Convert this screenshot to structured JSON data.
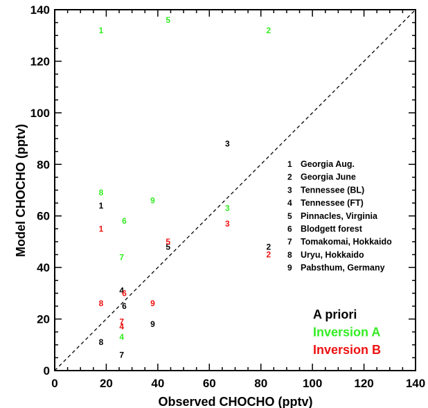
{
  "chart_data": {
    "type": "scatter",
    "xlabel": "Observed CHOCHO (pptv)",
    "ylabel": "Model CHOCHO (pptv)",
    "xlim": [
      0,
      140
    ],
    "ylim": [
      0,
      140
    ],
    "x_ticks": [
      0,
      20,
      40,
      60,
      80,
      100,
      120,
      140
    ],
    "y_ticks": [
      0,
      20,
      40,
      60,
      80,
      100,
      120,
      140
    ],
    "grid": false,
    "reference_line": "1:1 dashed",
    "site_legend": [
      {
        "num": "1",
        "label": "Georgia Aug."
      },
      {
        "num": "2",
        "label": "Georgia June"
      },
      {
        "num": "3",
        "label": "Tennessee (BL)"
      },
      {
        "num": "4",
        "label": "Tennessee (FT)"
      },
      {
        "num": "5",
        "label": "Pinnacles, Virginia"
      },
      {
        "num": "6",
        "label": "Blodgett forest"
      },
      {
        "num": "7",
        "label": "Tomakomai, Hokkaido"
      },
      {
        "num": "8",
        "label": "Uryu, Hokkaido"
      },
      {
        "num": "9",
        "label": "Pabsthum, Germany"
      }
    ],
    "series": [
      {
        "name": "A priori",
        "color": "#000000",
        "points": [
          {
            "label": "1",
            "x": 18,
            "y": 64
          },
          {
            "label": "2",
            "x": 83,
            "y": 48
          },
          {
            "label": "3",
            "x": 67,
            "y": 88
          },
          {
            "label": "4",
            "x": 26,
            "y": 31
          },
          {
            "label": "5",
            "x": 44,
            "y": 48
          },
          {
            "label": "6",
            "x": 27,
            "y": 25
          },
          {
            "label": "7",
            "x": 26,
            "y": 6
          },
          {
            "label": "8",
            "x": 18,
            "y": 11
          },
          {
            "label": "9",
            "x": 38,
            "y": 18
          }
        ]
      },
      {
        "name": "Inversion A",
        "color": "#33ee22",
        "points": [
          {
            "label": "1",
            "x": 18,
            "y": 132
          },
          {
            "label": "2",
            "x": 83,
            "y": 132
          },
          {
            "label": "3",
            "x": 67,
            "y": 63
          },
          {
            "label": "4",
            "x": 26,
            "y": 13
          },
          {
            "label": "5",
            "x": 44,
            "y": 136
          },
          {
            "label": "6",
            "x": 27,
            "y": 58
          },
          {
            "label": "7",
            "x": 26,
            "y": 44
          },
          {
            "label": "8",
            "x": 18,
            "y": 69
          },
          {
            "label": "9",
            "x": 38,
            "y": 66
          }
        ]
      },
      {
        "name": "Inversion B",
        "color": "#ee1111",
        "points": [
          {
            "label": "1",
            "x": 18,
            "y": 55
          },
          {
            "label": "2",
            "x": 83,
            "y": 45
          },
          {
            "label": "3",
            "x": 67,
            "y": 57
          },
          {
            "label": "4",
            "x": 26,
            "y": 17
          },
          {
            "label": "5",
            "x": 44,
            "y": 50
          },
          {
            "label": "6",
            "x": 27,
            "y": 30
          },
          {
            "label": "7",
            "x": 26,
            "y": 19
          },
          {
            "label": "8",
            "x": 18,
            "y": 26
          },
          {
            "label": "9",
            "x": 38,
            "y": 26
          }
        ]
      }
    ]
  }
}
